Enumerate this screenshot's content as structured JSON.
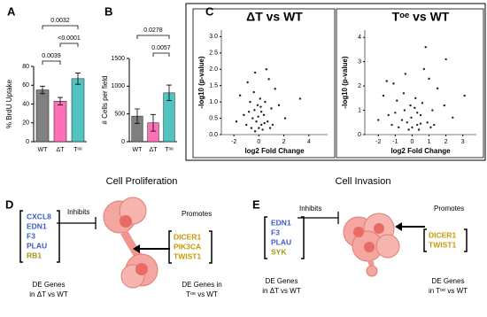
{
  "panel_labels": [
    "A",
    "B",
    "C",
    "D",
    "E"
  ],
  "chart_data": [
    {
      "type": "bar",
      "y_label": "% BrdU Uptake",
      "categories": [
        "WT",
        "ΔT",
        "Tᵒᵉ"
      ],
      "values": [
        55,
        43,
        67
      ],
      "errors": [
        4,
        4,
        6
      ],
      "colors": [
        "#808080",
        "#ff6fb6",
        "#4fc4c1"
      ],
      "ylim": [
        0,
        80
      ],
      "yticks": [
        0,
        20,
        40,
        60,
        80
      ],
      "comparisons": [
        {
          "pair": [
            0,
            1
          ],
          "label": "0.0039"
        },
        {
          "pair": [
            1,
            2
          ],
          "label": "<0.0001"
        },
        {
          "pair": [
            0,
            2
          ],
          "label": "0.0032"
        }
      ]
    },
    {
      "type": "bar",
      "y_label": "# Cells per field",
      "categories": [
        "WT",
        "ΔT",
        "Tᵒᵉ"
      ],
      "values": [
        460,
        340,
        880
      ],
      "errors": [
        130,
        150,
        140
      ],
      "colors": [
        "#808080",
        "#ff6fb6",
        "#4fc4c1"
      ],
      "ylim": [
        0,
        1500
      ],
      "yticks": [
        0,
        500,
        1000,
        1500
      ],
      "comparisons": [
        {
          "pair": [
            1,
            2
          ],
          "label": "0.0057"
        },
        {
          "pair": [
            0,
            2
          ],
          "label": "0.0278"
        }
      ]
    },
    {
      "type": "scatter",
      "title": "ΔT vs WT",
      "x_label": "log2 Fold Change",
      "y_label": "-log10 (p-value)",
      "xlim": [
        -3,
        5.5
      ],
      "ylim": [
        0,
        3.2
      ],
      "xticks": [
        -2,
        0,
        2,
        4
      ],
      "yticks": [
        {
          "value": 0,
          "label": "0.0"
        },
        {
          "value": 0.5,
          "label": "0.5"
        },
        {
          "value": 1,
          "label": "1.0"
        },
        {
          "value": 1.5,
          "label": "1.5"
        },
        {
          "value": 2,
          "label": "2.0"
        },
        {
          "value": 2.5,
          "label": "2.5"
        },
        {
          "value": 3,
          "label": "3.0"
        }
      ],
      "x": [
        -0.3,
        0.2,
        -0.5,
        0.4,
        -0.8,
        0.7,
        -0.1,
        0.1,
        -0.4,
        0.5,
        -1.2,
        1.0,
        -0.6,
        0.3,
        -0.2,
        0.0,
        1.3,
        -1.5,
        0.8,
        -0.9,
        0.6,
        -0.3,
        1.6,
        -1.8,
        2.1,
        0.2,
        -0.7,
        0.9,
        -1.0,
        0.45,
        3.3,
        -0.05,
        0.15,
        -0.35,
        1.1
      ],
      "y": [
        0.1,
        0.3,
        0.5,
        0.6,
        0.7,
        0.4,
        0.9,
        1.1,
        1.3,
        1.0,
        0.6,
        0.8,
        0.2,
        0.15,
        0.4,
        0.2,
        1.4,
        1.2,
        1.7,
        1.6,
        2.0,
        1.9,
        0.9,
        0.4,
        0.5,
        0.7,
        1.0,
        0.2,
        0.3,
        0.35,
        1.1,
        0.55,
        0.85,
        0.75,
        0.3
      ]
    },
    {
      "type": "scatter",
      "title": "Tᵒᵉ vs WT",
      "x_label": "log2 Fold Change",
      "y_label": "-log10 (p-value)",
      "xlim": [
        -2.8,
        3.8
      ],
      "ylim": [
        0,
        4.3
      ],
      "xticks": [
        -2,
        -1,
        0,
        1,
        2,
        3
      ],
      "yticks": [
        0,
        1,
        2,
        3,
        4
      ],
      "x": [
        -0.2,
        0.3,
        -0.6,
        0.5,
        -1.0,
        0.9,
        -0.1,
        0.2,
        -0.5,
        0.6,
        -1.4,
        1.2,
        -0.8,
        0.4,
        -0.3,
        0.0,
        1.5,
        -1.7,
        1.0,
        -1.1,
        0.7,
        -0.4,
        1.9,
        -2.0,
        2.4,
        0.3,
        -0.9,
        1.1,
        -1.2,
        0.5,
        3.1,
        -0.05,
        0.15,
        -0.45,
        1.3,
        2.0,
        -1.5,
        0.8
      ],
      "y": [
        0.2,
        0.4,
        0.6,
        0.8,
        0.9,
        0.5,
        1.2,
        1.5,
        1.7,
        1.3,
        0.8,
        1.0,
        0.3,
        0.2,
        0.5,
        0.3,
        1.9,
        1.6,
        2.3,
        2.1,
        2.7,
        2.5,
        1.2,
        0.6,
        0.7,
        0.9,
        1.4,
        0.3,
        0.4,
        0.45,
        1.6,
        0.7,
        1.1,
        1.0,
        0.4,
        3.1,
        2.2,
        3.6
      ]
    }
  ],
  "diagrams": [
    {
      "title": "Cell Proliferation",
      "left_genes": [
        {
          "name": "CXCL8",
          "color": "#3b5cc6"
        },
        {
          "name": "EDN1",
          "color": "#3b5cc6"
        },
        {
          "name": "F3",
          "color": "#3b5cc6"
        },
        {
          "name": "PLAU",
          "color": "#3b5cc6"
        },
        {
          "name": "RB1",
          "color": "#9c9a12"
        }
      ],
      "left_action": "Inhibits",
      "left_caption": [
        "DE Genes",
        "in ΔT vs WT"
      ],
      "right_genes": [
        {
          "name": "DICER1",
          "color": "#c49a00"
        },
        {
          "name": "PIK3CA",
          "color": "#c49a00"
        },
        {
          "name": "TWIST1",
          "color": "#c49a00"
        }
      ],
      "right_action": "Promotes",
      "right_caption": [
        "DE Genes in",
        "Tᵒᵉ vs WT"
      ]
    },
    {
      "title": "Cell Invasion",
      "left_genes": [
        {
          "name": "EDN1",
          "color": "#3b5cc6"
        },
        {
          "name": "F3",
          "color": "#3b5cc6"
        },
        {
          "name": "PLAU",
          "color": "#3b5cc6"
        },
        {
          "name": "SYK",
          "color": "#9c9a12"
        }
      ],
      "left_action": "Inhibits",
      "left_caption": [
        "DE Genes",
        "in ΔT vs WT"
      ],
      "right_genes": [
        {
          "name": "DICER1",
          "color": "#c49a00"
        },
        {
          "name": "TWIST1",
          "color": "#c49a00"
        }
      ],
      "right_action": "Promotes",
      "right_caption": [
        "DE Genes",
        "in Tᵒᵉ vs WT"
      ]
    }
  ]
}
